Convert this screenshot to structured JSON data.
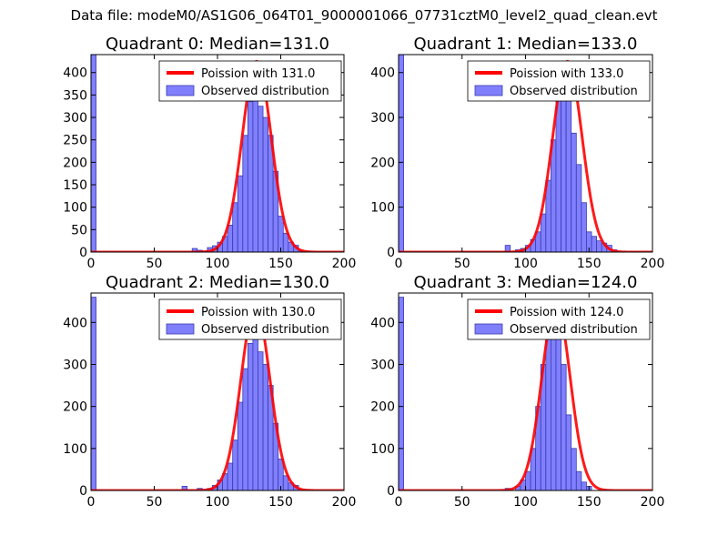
{
  "figure": {
    "suptitle": "Data file: modeM0/AS1G06_064T01_9000001066_07731cztM0_level2_quad_clean.evt"
  },
  "colors": {
    "bar_fill": "#8080ff",
    "bar_edge": "#3a3ab0",
    "curve": "#ff0000",
    "axis": "#000000"
  },
  "chart_data": [
    {
      "type": "bar",
      "title": "Quadrant 0: Median=131.0",
      "xlim": [
        0,
        200
      ],
      "ylim": [
        0,
        440
      ],
      "xticks": [
        0,
        50,
        100,
        150,
        200
      ],
      "yticks": [
        0,
        50,
        100,
        150,
        200,
        250,
        300,
        350,
        400
      ],
      "legend": {
        "placement": "top-right",
        "entries": [
          "Poission with 131.0",
          "Observed distribution"
        ]
      },
      "bin_width": 4,
      "bins": [
        0,
        4,
        8,
        12,
        16,
        20,
        24,
        28,
        32,
        36,
        40,
        44,
        48,
        52,
        56,
        60,
        64,
        68,
        72,
        76,
        80,
        84,
        88,
        92,
        96,
        100,
        104,
        108,
        112,
        116,
        120,
        124,
        128,
        132,
        136,
        140,
        144,
        148,
        152,
        156,
        160,
        164,
        168,
        172,
        176,
        180,
        184,
        188,
        192,
        196
      ],
      "values": [
        450,
        0,
        0,
        0,
        0,
        0,
        0,
        0,
        0,
        0,
        0,
        0,
        0,
        0,
        0,
        0,
        0,
        0,
        0,
        0,
        8,
        4,
        2,
        10,
        14,
        22,
        35,
        60,
        110,
        170,
        260,
        335,
        380,
        325,
        300,
        260,
        180,
        80,
        42,
        22,
        15,
        4,
        0,
        0,
        0,
        0,
        0,
        0,
        0,
        0
      ],
      "poisson_mean": 131.0,
      "poisson_peak": 425
    },
    {
      "type": "bar",
      "title": "Quadrant 1: Median=133.0",
      "xlim": [
        0,
        200
      ],
      "ylim": [
        0,
        440
      ],
      "xticks": [
        0,
        50,
        100,
        150,
        200
      ],
      "yticks": [
        0,
        100,
        200,
        300,
        400
      ],
      "legend": {
        "placement": "top-right",
        "entries": [
          "Poission with 133.0",
          "Observed distribution"
        ]
      },
      "bin_width": 4,
      "bins": [
        0,
        4,
        8,
        12,
        16,
        20,
        24,
        28,
        32,
        36,
        40,
        44,
        48,
        52,
        56,
        60,
        64,
        68,
        72,
        76,
        80,
        84,
        88,
        92,
        96,
        100,
        104,
        108,
        112,
        116,
        120,
        124,
        128,
        132,
        136,
        140,
        144,
        148,
        152,
        156,
        160,
        164,
        168,
        172,
        176,
        180,
        184,
        188,
        192,
        196
      ],
      "values": [
        450,
        0,
        0,
        0,
        0,
        0,
        0,
        0,
        0,
        0,
        0,
        0,
        0,
        0,
        0,
        0,
        0,
        0,
        0,
        0,
        0,
        15,
        0,
        5,
        8,
        15,
        28,
        45,
        85,
        160,
        250,
        340,
        400,
        340,
        265,
        195,
        110,
        45,
        35,
        25,
        20,
        15,
        5,
        0,
        0,
        0,
        0,
        0,
        0,
        0
      ],
      "poisson_mean": 133.0,
      "poisson_peak": 425
    },
    {
      "type": "bar",
      "title": "Quadrant 2: Median=130.0",
      "xlim": [
        0,
        200
      ],
      "ylim": [
        0,
        470
      ],
      "xticks": [
        0,
        50,
        100,
        150,
        200
      ],
      "yticks": [
        0,
        100,
        200,
        300,
        400
      ],
      "legend": {
        "placement": "top-right",
        "entries": [
          "Poission with 130.0",
          "Observed distribution"
        ]
      },
      "bin_width": 4,
      "bins": [
        0,
        4,
        8,
        12,
        16,
        20,
        24,
        28,
        32,
        36,
        40,
        44,
        48,
        52,
        56,
        60,
        64,
        68,
        72,
        76,
        80,
        84,
        88,
        92,
        96,
        100,
        104,
        108,
        112,
        116,
        120,
        124,
        128,
        132,
        136,
        140,
        144,
        148,
        152,
        156,
        160,
        164,
        168,
        172,
        176,
        180,
        184,
        188,
        192,
        196
      ],
      "values": [
        460,
        0,
        0,
        0,
        0,
        0,
        0,
        0,
        0,
        0,
        0,
        0,
        0,
        0,
        0,
        0,
        0,
        0,
        10,
        0,
        0,
        5,
        0,
        5,
        12,
        25,
        40,
        65,
        120,
        210,
        290,
        350,
        390,
        330,
        300,
        250,
        160,
        75,
        35,
        18,
        12,
        0,
        0,
        0,
        0,
        0,
        0,
        0,
        0,
        0
      ],
      "poisson_mean": 130.0,
      "poisson_peak": 440
    },
    {
      "type": "bar",
      "title": "Quadrant 3: Median=124.0",
      "xlim": [
        0,
        200
      ],
      "ylim": [
        0,
        470
      ],
      "xticks": [
        0,
        50,
        100,
        150,
        200
      ],
      "yticks": [
        0,
        100,
        200,
        300,
        400
      ],
      "legend": {
        "placement": "top-right",
        "entries": [
          "Poission with 124.0",
          "Observed distribution"
        ]
      },
      "bin_width": 4,
      "bins": [
        0,
        4,
        8,
        12,
        16,
        20,
        24,
        28,
        32,
        36,
        40,
        44,
        48,
        52,
        56,
        60,
        64,
        68,
        72,
        76,
        80,
        84,
        88,
        92,
        96,
        100,
        104,
        108,
        112,
        116,
        120,
        124,
        128,
        132,
        136,
        140,
        144,
        148,
        152,
        156,
        160,
        164,
        168,
        172,
        176,
        180,
        184,
        188,
        192,
        196
      ],
      "values": [
        460,
        0,
        0,
        0,
        0,
        0,
        0,
        0,
        0,
        0,
        0,
        0,
        0,
        0,
        0,
        0,
        0,
        0,
        0,
        0,
        0,
        5,
        0,
        10,
        25,
        45,
        100,
        200,
        300,
        390,
        440,
        430,
        300,
        180,
        100,
        45,
        20,
        10,
        0,
        0,
        0,
        0,
        0,
        0,
        0,
        0,
        0,
        0,
        0,
        0
      ],
      "poisson_mean": 124.0,
      "poisson_peak": 445
    }
  ]
}
